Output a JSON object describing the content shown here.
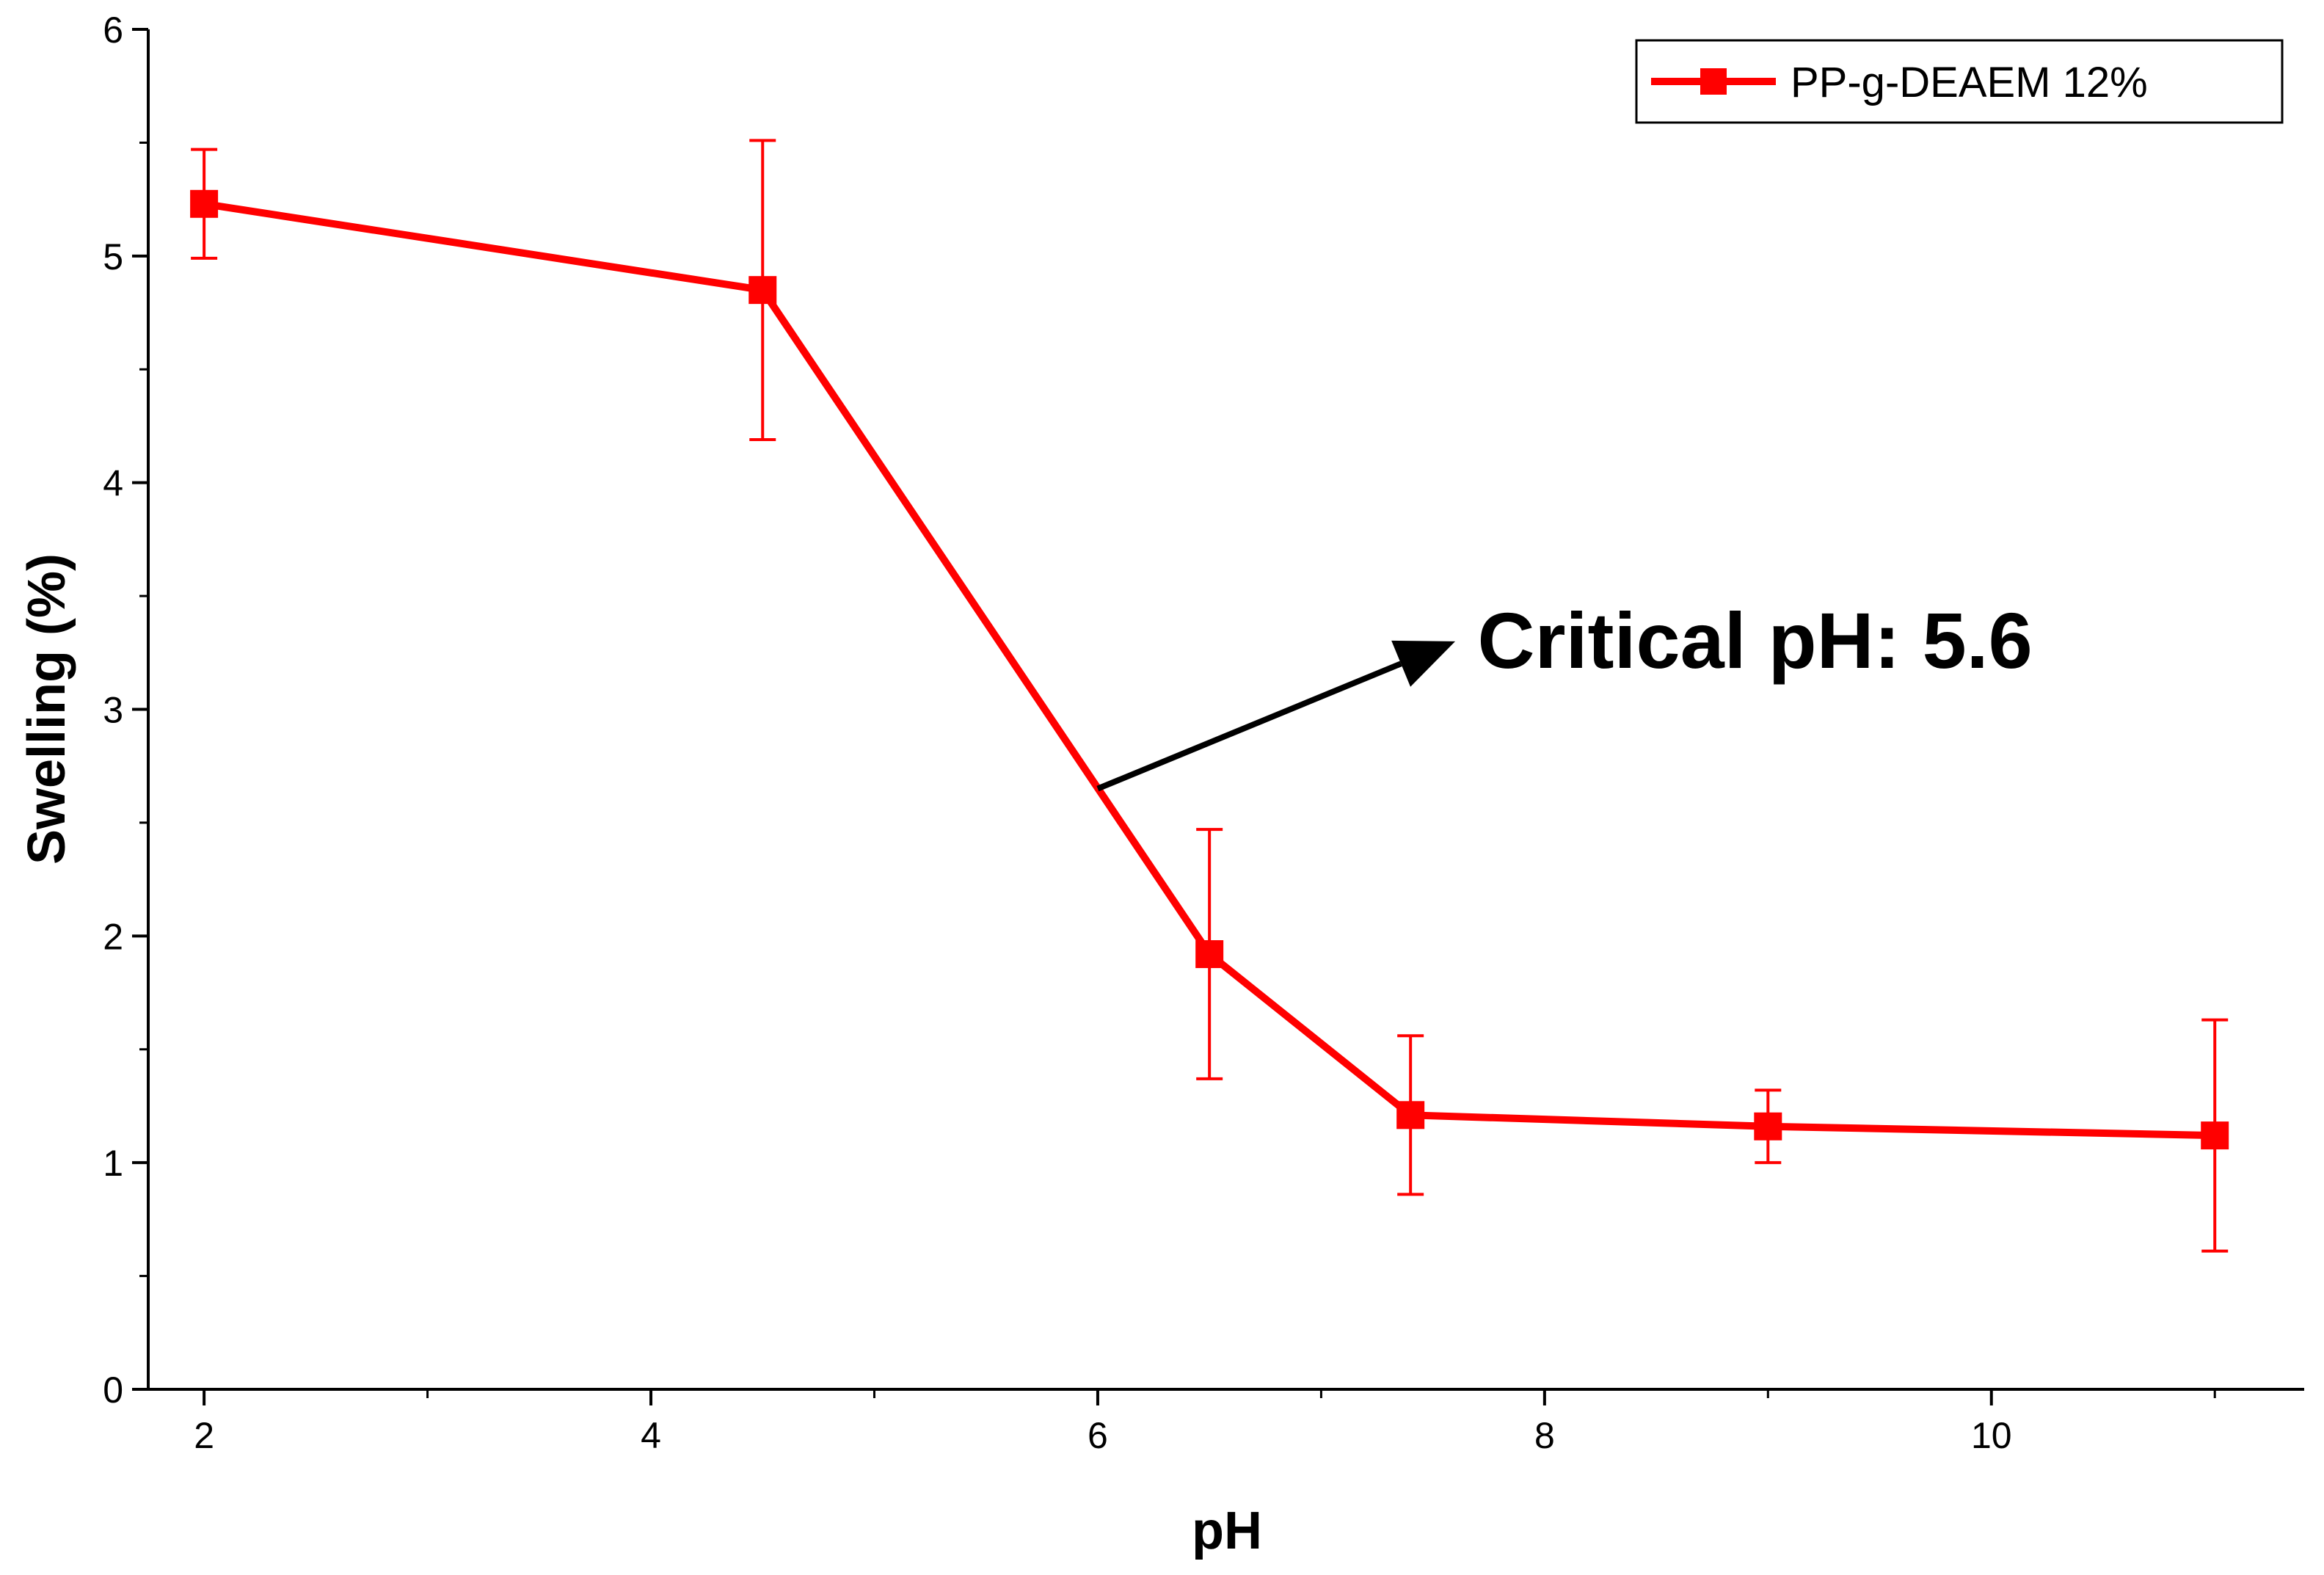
{
  "chart_data": {
    "type": "line",
    "title": "",
    "xlabel": "pH",
    "ylabel": "Swelling (%)",
    "xlim": [
      1.75,
      11.4
    ],
    "ylim": [
      0,
      6
    ],
    "x_major_ticks": [
      2,
      4,
      6,
      8,
      10
    ],
    "x_minor_ticks": [
      3,
      5,
      7,
      9,
      11
    ],
    "y_major_ticks": [
      0,
      1,
      2,
      3,
      4,
      5,
      6
    ],
    "y_minor_ticks": [
      0.5,
      1.5,
      2.5,
      3.5,
      4.5,
      5.5
    ],
    "x_tick_labels": [
      "2",
      "4",
      "6",
      "8",
      "10"
    ],
    "y_tick_labels": [
      "0",
      "1",
      "2",
      "3",
      "4",
      "5",
      "6"
    ],
    "grid": false,
    "legend_position": "top-right",
    "series": [
      {
        "name": "PP-g-DEAEM 12%",
        "color": "#ff0000",
        "marker": "square",
        "x": [
          2,
          4.5,
          6.5,
          7.4,
          9,
          11
        ],
        "values": [
          5.23,
          4.85,
          1.92,
          1.21,
          1.16,
          1.12
        ],
        "error": [
          0.24,
          0.66,
          0.55,
          0.35,
          0.16,
          0.51
        ]
      }
    ],
    "annotation": {
      "text": "Critical pH: 5.6",
      "arrow_from": [
        6.0,
        2.65
      ],
      "arrow_to": [
        7.6,
        3.3
      ],
      "text_at": [
        7.7,
        3.3
      ]
    }
  }
}
